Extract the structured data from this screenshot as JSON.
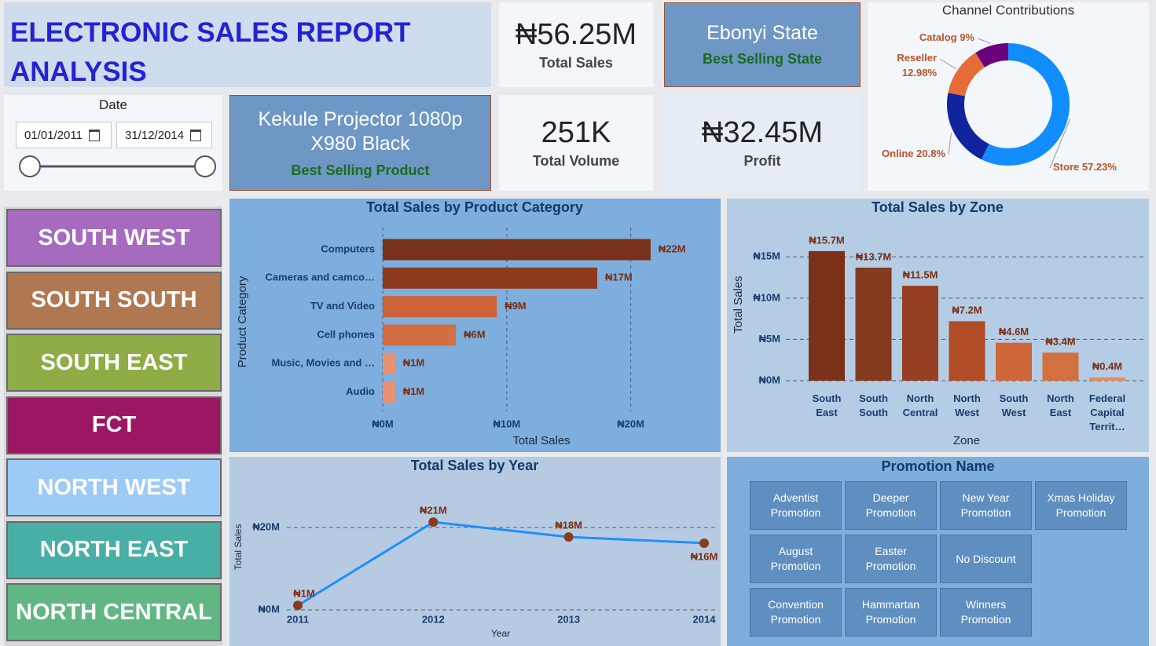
{
  "header": {
    "title": "ELECTRONIC SALES REPORT ANALYSIS"
  },
  "kpis": [
    {
      "value": "₦56.25M",
      "label": "Total Sales"
    },
    {
      "value": "Ebonyi State",
      "label": "Best Selling State"
    },
    {
      "value": "Kekule Projector 1080p X980 Black",
      "label": "Best Selling Product"
    },
    {
      "value": "251K",
      "label": "Total Volume"
    },
    {
      "value": "₦32.45M",
      "label": "Profit"
    }
  ],
  "date_slicer": {
    "title": "Date",
    "start": "01/01/2011",
    "end": "31/12/2014"
  },
  "zone_buttons": [
    {
      "label": "SOUTH WEST",
      "color": "#a66bbe"
    },
    {
      "label": "SOUTH SOUTH",
      "color": "#b07750"
    },
    {
      "label": "SOUTH EAST",
      "color": "#8fac46"
    },
    {
      "label": "FCT",
      "color": "#9b1762"
    },
    {
      "label": "NORTH WEST",
      "color": "#9dcbf6"
    },
    {
      "label": "NORTH EAST",
      "color": "#47afa6"
    },
    {
      "label": "NORTH CENTRAL",
      "color": "#60b783"
    }
  ],
  "promotion_slicer": {
    "title": "Promotion Name",
    "items": [
      "Adventist Promotion",
      "Deeper Promotion",
      "New Year Promotion",
      "Xmas Holiday Promotion",
      "August Promotion",
      "Easter Promotion",
      "No Discount",
      "Convention Promotion",
      "Hammartan Promotion",
      "Winners Promotion"
    ]
  },
  "chart_data": [
    {
      "type": "donut",
      "title": "Channel Contributions",
      "categories": [
        "Store",
        "Online",
        "Reseller",
        "Catalog"
      ],
      "values": [
        57.23,
        20.8,
        12.98,
        9
      ],
      "value_labels": [
        "57.23%",
        "20.8%",
        "12.98%",
        "9%"
      ],
      "colors": [
        "#118dff",
        "#12239e",
        "#e66c37",
        "#6b007b"
      ]
    },
    {
      "type": "hbar",
      "title": "Total Sales by Product Category",
      "x_label": "Total Sales",
      "y_label": "Product Category",
      "categories": [
        "Computers",
        "Cameras and camco…",
        "TV and Video",
        "Cell phones",
        "Music, Movies and …",
        "Audio"
      ],
      "values": [
        21600000,
        17300000,
        9200000,
        5900000,
        1000000,
        1000000
      ],
      "value_labels": [
        "₦22M",
        "₦17M",
        "₦9M",
        "₦6M",
        "₦1M",
        "₦1M"
      ],
      "colors": [
        "#7a3119",
        "#8e3a1d",
        "#cc6238",
        "#d36d42",
        "#e8906f",
        "#e8906f"
      ],
      "xlim": [
        0,
        23000000
      ],
      "xticks": [
        {
          "value": 0,
          "label": "₦0M"
        },
        {
          "value": 10000000,
          "label": "₦10M"
        },
        {
          "value": 20000000,
          "label": "₦20M"
        }
      ],
      "grid": true
    },
    {
      "type": "bar",
      "title": "Total Sales by Zone",
      "x_label": "Zone",
      "y_label": "Total Sales",
      "categories": [
        "South East",
        "South South",
        "North Central",
        "North West",
        "South West",
        "North East",
        "Federal Capital Territ…"
      ],
      "values": [
        15700000,
        13700000,
        11500000,
        7200000,
        4600000,
        3400000,
        400000
      ],
      "value_labels": [
        "₦15.7M",
        "₦13.7M",
        "₦11.5M",
        "₦7.2M",
        "₦4.6M",
        "₦3.4M",
        "₦0.4M"
      ],
      "colors": [
        "#7b3219",
        "#843a1f",
        "#963f22",
        "#b04d27",
        "#cd6738",
        "#d3703f",
        "#e38c62"
      ],
      "ylim": [
        0,
        17500000
      ],
      "yticks": [
        {
          "value": 0,
          "label": "₦0M"
        },
        {
          "value": 5000000,
          "label": "₦5M"
        },
        {
          "value": 10000000,
          "label": "₦10M"
        },
        {
          "value": 15000000,
          "label": "₦15M"
        }
      ],
      "grid": true
    },
    {
      "type": "line",
      "title": "Total Sales by Year",
      "x_label": "Year",
      "y_label": "Total Sales",
      "x": [
        2011,
        2012,
        2013,
        2014
      ],
      "values": [
        1100000,
        21300000,
        17700000,
        16200000
      ],
      "value_labels": [
        "₦1M",
        "₦21M",
        "₦18M",
        "₦16M"
      ],
      "color": "#1e8fff",
      "marker_color": "#8b3a1c",
      "xlim": [
        2011,
        2014
      ],
      "xticks": [
        2011,
        2012,
        2013,
        2014
      ],
      "ylim": [
        0,
        24000000
      ],
      "yticks": [
        {
          "value": 0,
          "label": "₦0M"
        },
        {
          "value": 20000000,
          "label": "₦20M"
        }
      ],
      "grid": true
    }
  ]
}
